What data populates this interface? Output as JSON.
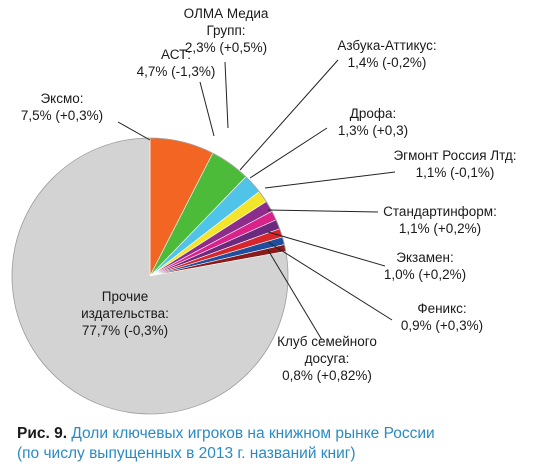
{
  "chart_data": {
    "type": "pie",
    "slices": [
      {
        "name": "Эксмо",
        "value": 7.5,
        "change": "+0,3%",
        "label_lines": [
          "Эксмо:",
          "7,5% (+0,3%)"
        ],
        "color": "#f26522"
      },
      {
        "name": "АСТ",
        "value": 4.7,
        "change": "-1,3%",
        "label_lines": [
          "АСТ:",
          "4,7% (-1,3%)"
        ],
        "color": "#4dbb3a"
      },
      {
        "name": "ОЛМА Медиа Групп",
        "value": 2.3,
        "change": "+0,5%",
        "label_lines": [
          "ОЛМА Медиа",
          "Групп:",
          "2,3% (+0,5%)"
        ],
        "color": "#4fc3e8"
      },
      {
        "name": "Азбука-Аттикус",
        "value": 1.4,
        "change": "-0,2%",
        "label_lines": [
          "Азбука-Аттикус:",
          "1,4% (-0,2%)"
        ],
        "color": "#f2e52b"
      },
      {
        "name": "Дрофа",
        "value": 1.3,
        "change": "+0,3",
        "label_lines": [
          "Дрофа:",
          "1,3% (+0,3)"
        ],
        "color": "#8c2d8c"
      },
      {
        "name": "Эгмонт Россия Лтд",
        "value": 1.1,
        "change": "-0,1%",
        "label_lines": [
          "Эгмонт Россия Лтд:",
          "1,1% (-0,1%)"
        ],
        "color": "#d9228a"
      },
      {
        "name": "Стандартинформ",
        "value": 1.1,
        "change": "+0,2%",
        "label_lines": [
          "Стандартинформ:",
          "1,1% (+0,2%)"
        ],
        "color": "#6b2a7d"
      },
      {
        "name": "Экзамен",
        "value": 1.0,
        "change": "+0,2%",
        "label_lines": [
          "Экзамен:",
          "1,0% (+0,2%)"
        ],
        "color": "#d7262b"
      },
      {
        "name": "Феникс",
        "value": 0.9,
        "change": "+0,3%",
        "label_lines": [
          "Феникс:",
          "0,9% (+0,3%)"
        ],
        "color": "#1f4e9e"
      },
      {
        "name": "Клуб семейного досуга",
        "value": 0.8,
        "change": "+0,82%",
        "label_lines": [
          "Клуб семейного",
          "досуга:",
          "0,8% (+0,82%)"
        ],
        "color": "#8b1a1a"
      },
      {
        "name": "Прочие издательства",
        "value": 77.7,
        "change": "-0,3%",
        "label_lines": [
          "Прочие",
          "издательства:",
          "77,7% (-0,3%)"
        ],
        "color": "#d3d3d3"
      }
    ]
  },
  "caption": {
    "fig_number": "Рис. 9.",
    "line1": "Доли ключевых игроков на книжном рынке России",
    "line2": "(по числу выпущенных в 2013 г. названий книг)"
  },
  "colors": {
    "caption_text": "#2a8bc4",
    "leader_line": "#222222"
  }
}
